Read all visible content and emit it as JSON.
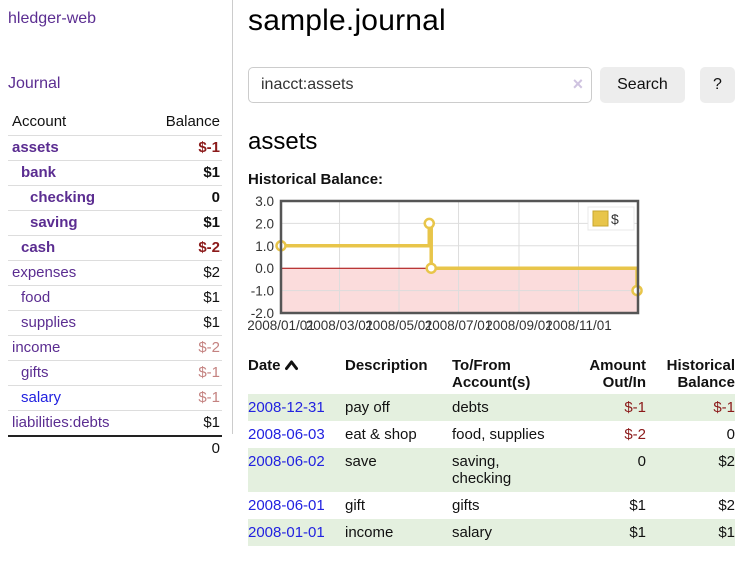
{
  "sidebar": {
    "app_title": "hledger-web",
    "journal_link": "Journal",
    "accounts_table": {
      "headers": {
        "account": "Account",
        "balance": "Balance"
      },
      "rows": [
        {
          "name": "assets",
          "level": 1,
          "bold": true,
          "balance": "$-1",
          "balance_style": "neg"
        },
        {
          "name": "bank",
          "level": 2,
          "bold": true,
          "balance": "$1",
          "balance_style": "pos"
        },
        {
          "name": "checking",
          "level": 3,
          "bold": true,
          "balance": "0",
          "balance_style": "pos"
        },
        {
          "name": "saving",
          "level": 3,
          "bold": true,
          "balance": "$1",
          "balance_style": "pos"
        },
        {
          "name": "cash",
          "level": 2,
          "bold": true,
          "balance": "$-2",
          "balance_style": "neg"
        },
        {
          "name": "expenses",
          "level": 1,
          "bold": false,
          "balance": "$2",
          "balance_style": "pos"
        },
        {
          "name": "food",
          "level": 2,
          "bold": false,
          "balance": "$1",
          "balance_style": "pos"
        },
        {
          "name": "supplies",
          "level": 2,
          "bold": false,
          "balance": "$1",
          "balance_style": "pos"
        },
        {
          "name": "income",
          "level": 1,
          "bold": false,
          "balance": "$-2",
          "balance_style": "neg-muted"
        },
        {
          "name": "gifts",
          "level": 2,
          "bold": false,
          "balance": "$-1",
          "balance_style": "neg-muted"
        },
        {
          "name": "salary",
          "level": 2,
          "bold": false,
          "balance": "$-1",
          "balance_style": "neg-muted",
          "link_color": "blue"
        },
        {
          "name": "liabilities:debts",
          "level": 1,
          "bold": false,
          "balance": "$1",
          "balance_style": "pos"
        }
      ],
      "total": "0"
    }
  },
  "main": {
    "title": "sample.journal",
    "search": {
      "value": "inacct:assets",
      "clear_icon": "×",
      "button_label": "Search",
      "help_label": "?"
    },
    "account_heading": "assets",
    "chart_label": "Historical Balance:"
  },
  "chart_data": {
    "type": "line",
    "step": true,
    "title": "Historical Balance",
    "series": [
      {
        "name": "$",
        "color": "#e8c54a",
        "points": [
          [
            "2008-01-01",
            1
          ],
          [
            "2008-06-01",
            2
          ],
          [
            "2008-06-03",
            0
          ],
          [
            "2008-12-31",
            -1
          ]
        ]
      }
    ],
    "x_domain": [
      "2008-01-01",
      "2009-01-01"
    ],
    "x_ticks": [
      "2008/01/01",
      "2008/03/01",
      "2008/05/01",
      "2008/07/01",
      "2008/09/01",
      "2008/11/01"
    ],
    "y_ticks": [
      3.0,
      2.0,
      1.0,
      0.0,
      -1.0,
      -2.0
    ],
    "ylim": [
      -2,
      3
    ],
    "grid": true,
    "legend": {
      "label": "$",
      "position": "top-right"
    },
    "negative_region_color": "#fbdcdc",
    "zero_line_color": "#a40000",
    "grid_color": "#ddd",
    "border_color": "#555",
    "tick_text_color": "#333"
  },
  "register_table": {
    "headers": {
      "date": "Date",
      "description": "Description",
      "accounts": "To/From Account(s)",
      "amount": "Amount Out/In",
      "historical": "Historical Balance"
    },
    "sort_column": "date",
    "sort_direction": "ascending",
    "rows": [
      {
        "date": "2008-12-31",
        "description": "pay off",
        "accounts": "debts",
        "amount": "$-1",
        "amount_style": "neg",
        "balance": "$-1",
        "balance_style": "neg"
      },
      {
        "date": "2008-06-03",
        "description": "eat & shop",
        "accounts": "food, supplies",
        "amount": "$-2",
        "amount_style": "neg",
        "balance": "0",
        "balance_style": "pos"
      },
      {
        "date": "2008-06-02",
        "description": "save",
        "accounts": "saving, checking",
        "amount": "0",
        "amount_style": "pos",
        "balance": "$2",
        "balance_style": "pos"
      },
      {
        "date": "2008-06-01",
        "description": "gift",
        "accounts": "gifts",
        "amount": "$1",
        "amount_style": "pos",
        "balance": "$2",
        "balance_style": "pos"
      },
      {
        "date": "2008-01-01",
        "description": "income",
        "accounts": "salary",
        "amount": "$1",
        "amount_style": "pos",
        "balance": "$1",
        "balance_style": "pos"
      }
    ]
  },
  "colors": {
    "link_purple": "#5b2d91",
    "link_blue": "#2222e0",
    "negative_red": "#8b1a1a",
    "negative_muted": "#c48280",
    "row_stripe_green": "#e4f0df",
    "series_gold": "#e8c54a"
  }
}
